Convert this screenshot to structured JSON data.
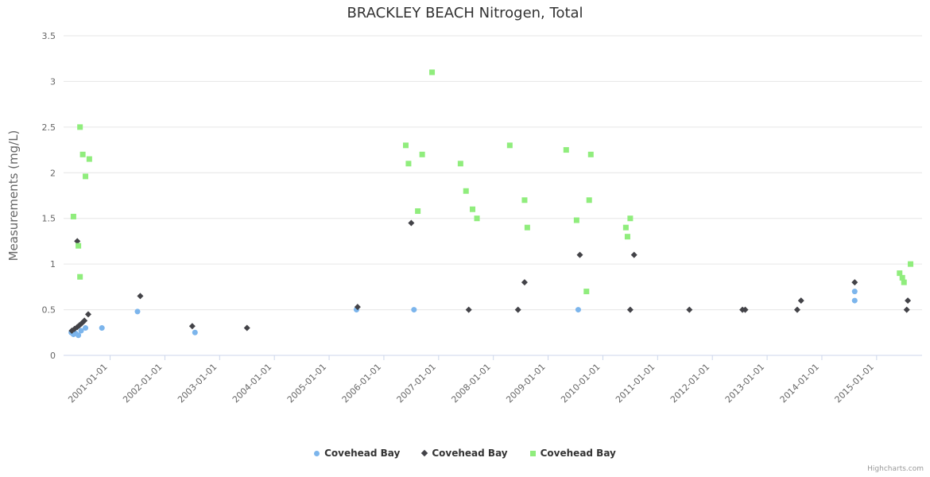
{
  "title": "BRACKLEY BEACH Nitrogen, Total",
  "credits": "Highcharts.com",
  "chart_data": {
    "type": "scatter",
    "title": "BRACKLEY BEACH Nitrogen, Total",
    "xlabel": "",
    "ylabel": "Measurements (mg/L)",
    "ylim": [
      0,
      3.5
    ],
    "ytick_interval": 0.5,
    "xlim": [
      2000.15,
      2015.83
    ],
    "x_unit": "decimal_year",
    "xticks": [
      "2001-01-01",
      "2002-01-01",
      "2003-01-01",
      "2004-01-01",
      "2005-01-01",
      "2006-01-01",
      "2007-01-01",
      "2008-01-01",
      "2009-01-01",
      "2010-01-01",
      "2011-01-01",
      "2012-01-01",
      "2013-01-01",
      "2014-01-01",
      "2015-01-01"
    ],
    "grid": "horizontal",
    "legend_position": "bottom",
    "colors": {
      "grid": "#e6e6e6",
      "axis_line": "#ccd6eb",
      "tick_label": "#666666",
      "axis_title": "#666666",
      "legend_text": "#333333",
      "credits": "#999999"
    },
    "series": [
      {
        "name": "Covehead Bay",
        "marker": "circle",
        "color": "#7cb5ec",
        "points": [
          [
            2000.29,
            0.25
          ],
          [
            2000.33,
            0.23
          ],
          [
            2000.37,
            0.24
          ],
          [
            2000.42,
            0.22
          ],
          [
            2000.47,
            0.27
          ],
          [
            2000.55,
            0.3
          ],
          [
            2000.85,
            0.3
          ],
          [
            2001.5,
            0.48
          ],
          [
            2002.55,
            0.25
          ],
          [
            2005.5,
            0.5
          ],
          [
            2006.55,
            0.5
          ],
          [
            2009.55,
            0.5
          ],
          [
            2014.6,
            0.7
          ],
          [
            2014.6,
            0.6
          ]
        ]
      },
      {
        "name": "Covehead Bay",
        "marker": "diamond",
        "color": "#434348",
        "points": [
          [
            2000.3,
            0.27
          ],
          [
            2000.35,
            0.29
          ],
          [
            2000.4,
            0.31
          ],
          [
            2000.44,
            0.33
          ],
          [
            2000.48,
            0.35
          ],
          [
            2000.53,
            0.38
          ],
          [
            2000.6,
            0.45
          ],
          [
            2000.4,
            1.25
          ],
          [
            2001.55,
            0.65
          ],
          [
            2002.5,
            0.32
          ],
          [
            2003.5,
            0.3
          ],
          [
            2005.52,
            0.53
          ],
          [
            2006.5,
            1.45
          ],
          [
            2007.55,
            0.5
          ],
          [
            2008.45,
            0.5
          ],
          [
            2008.57,
            0.8
          ],
          [
            2009.58,
            1.1
          ],
          [
            2010.5,
            0.5
          ],
          [
            2010.57,
            1.1
          ],
          [
            2011.58,
            0.5
          ],
          [
            2012.55,
            0.5
          ],
          [
            2012.6,
            0.5
          ],
          [
            2013.55,
            0.5
          ],
          [
            2013.62,
            0.6
          ],
          [
            2014.6,
            0.8
          ],
          [
            2015.55,
            0.5
          ],
          [
            2015.57,
            0.6
          ]
        ]
      },
      {
        "name": "Covehead Bay",
        "marker": "square",
        "color": "#90ed7d",
        "points": [
          [
            2000.33,
            1.52
          ],
          [
            2000.42,
            1.2
          ],
          [
            2000.45,
            0.86
          ],
          [
            2000.45,
            2.5
          ],
          [
            2000.5,
            2.2
          ],
          [
            2000.55,
            1.96
          ],
          [
            2000.62,
            2.15
          ],
          [
            2006.4,
            2.3
          ],
          [
            2006.45,
            2.1
          ],
          [
            2006.62,
            1.58
          ],
          [
            2006.7,
            2.2
          ],
          [
            2006.88,
            3.1
          ],
          [
            2007.4,
            2.1
          ],
          [
            2007.5,
            1.8
          ],
          [
            2007.62,
            1.6
          ],
          [
            2007.7,
            1.5
          ],
          [
            2008.3,
            2.3
          ],
          [
            2008.57,
            1.7
          ],
          [
            2008.62,
            1.4
          ],
          [
            2009.33,
            2.25
          ],
          [
            2009.52,
            1.48
          ],
          [
            2009.7,
            0.7
          ],
          [
            2009.75,
            1.7
          ],
          [
            2009.78,
            2.2
          ],
          [
            2010.42,
            1.4
          ],
          [
            2010.45,
            1.3
          ],
          [
            2010.5,
            1.5
          ],
          [
            2015.42,
            0.9
          ],
          [
            2015.47,
            0.85
          ],
          [
            2015.5,
            0.8
          ],
          [
            2015.62,
            1.0
          ]
        ]
      }
    ]
  }
}
